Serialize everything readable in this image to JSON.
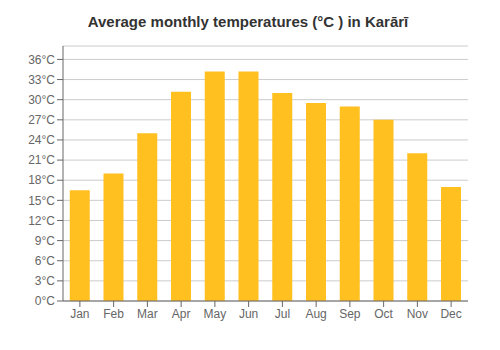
{
  "chart_data": {
    "type": "bar",
    "title": "Average monthly temperatures (°C ) in Karārī",
    "categories": [
      "Jan",
      "Feb",
      "Mar",
      "Apr",
      "May",
      "Jun",
      "Jul",
      "Aug",
      "Sep",
      "Oct",
      "Nov",
      "Dec"
    ],
    "values": [
      16.5,
      19.0,
      25.0,
      31.2,
      34.2,
      34.2,
      31.0,
      29.5,
      29.0,
      27.0,
      22.0,
      17.0
    ],
    "color": "#FFC020",
    "ylim": [
      0,
      38
    ],
    "yticks": [
      {
        "value": 0,
        "label": "0°C"
      },
      {
        "value": 3,
        "label": "3°C"
      },
      {
        "value": 6,
        "label": "6°C"
      },
      {
        "value": 9,
        "label": "9°C"
      },
      {
        "value": 12,
        "label": "12°C"
      },
      {
        "value": 15,
        "label": "15°C"
      },
      {
        "value": 18,
        "label": "18°C"
      },
      {
        "value": 21,
        "label": "21°C"
      },
      {
        "value": 24,
        "label": "24°C"
      },
      {
        "value": 27,
        "label": "27°C"
      },
      {
        "value": 30,
        "label": "30°C"
      },
      {
        "value": 33,
        "label": "33°C"
      },
      {
        "value": 36,
        "label": "36°C"
      }
    ],
    "grid": true
  }
}
